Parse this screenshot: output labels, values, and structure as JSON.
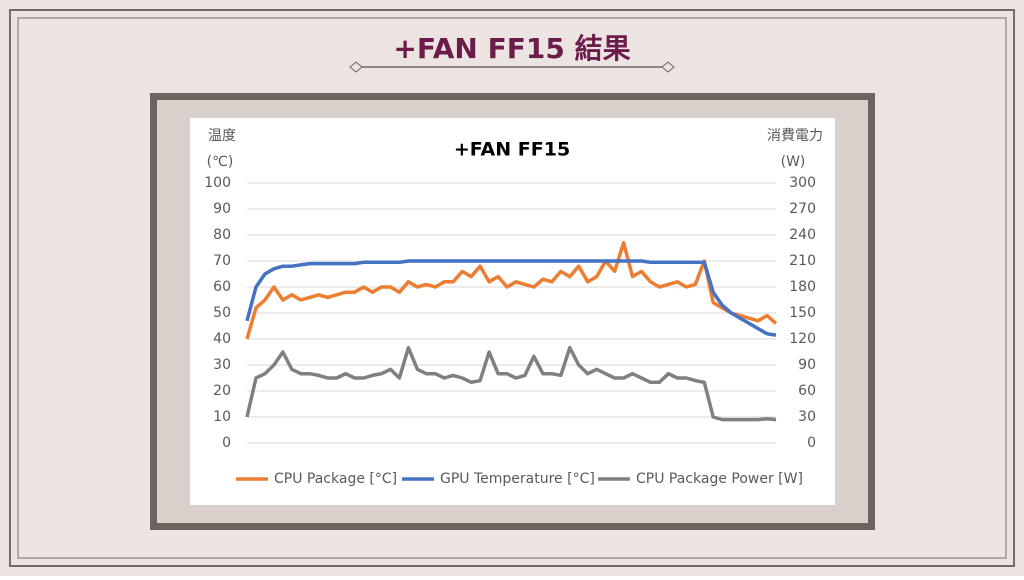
{
  "slide_title": "+FAN FF15 結果",
  "chart_data": {
    "type": "line",
    "title": "+FAN FF15",
    "y_label_lines": [
      "温度",
      "(℃)"
    ],
    "y2_label_lines": [
      "消費電力",
      "(W)"
    ],
    "ylim": [
      0,
      100
    ],
    "yticks": [
      0,
      10,
      20,
      30,
      40,
      50,
      60,
      70,
      80,
      90,
      100
    ],
    "y2lim": [
      0,
      300
    ],
    "y2ticks": [
      0,
      30,
      60,
      90,
      120,
      150,
      180,
      210,
      240,
      270,
      300
    ],
    "grid": true,
    "legend": "bottom",
    "series": [
      {
        "name": "CPU Package [°C]",
        "color": "#ed7d31",
        "values": [
          40,
          52,
          55,
          60,
          55,
          57,
          55,
          56,
          57,
          56,
          57,
          58,
          58,
          60,
          58,
          60,
          60,
          58,
          62,
          60,
          61,
          60,
          62,
          62,
          66,
          64,
          68,
          62,
          64,
          60,
          62,
          61,
          60,
          63,
          62,
          66,
          64,
          68,
          62,
          64,
          70,
          66,
          77,
          64,
          66,
          62,
          60,
          61,
          62,
          60,
          61,
          70,
          54,
          52,
          50,
          49,
          48,
          47,
          49,
          46
        ]
      },
      {
        "name": "GPU Temperature [°C]",
        "color": "#4472c4",
        "values": [
          47,
          60,
          65,
          67,
          68,
          68,
          68.5,
          69,
          69,
          69,
          69,
          69,
          69,
          69.5,
          69.5,
          69.5,
          69.5,
          69.5,
          70,
          70,
          70,
          70,
          70,
          70,
          70,
          70,
          70,
          70,
          70,
          70,
          70,
          70,
          70,
          70,
          70,
          70,
          70,
          70,
          70,
          70,
          70,
          70,
          70,
          70,
          70,
          69.5,
          69.5,
          69.5,
          69.5,
          69.5,
          69.5,
          69.5,
          58,
          53,
          50,
          48,
          46,
          44,
          42,
          41.5
        ]
      },
      {
        "name": "CPU Package Power [W]",
        "color": "#808080",
        "axis": "y2",
        "values": [
          30,
          75,
          80,
          90,
          105,
          85,
          80,
          80,
          78,
          75,
          75,
          80,
          75,
          75,
          78,
          80,
          85,
          75,
          110,
          85,
          80,
          80,
          75,
          78,
          75,
          70,
          72,
          105,
          80,
          80,
          75,
          78,
          100,
          80,
          80,
          78,
          110,
          90,
          80,
          85,
          80,
          75,
          75,
          80,
          75,
          70,
          70,
          80,
          75,
          75,
          72,
          70,
          30,
          27,
          27,
          27,
          27,
          27,
          28,
          27
        ]
      }
    ]
  }
}
